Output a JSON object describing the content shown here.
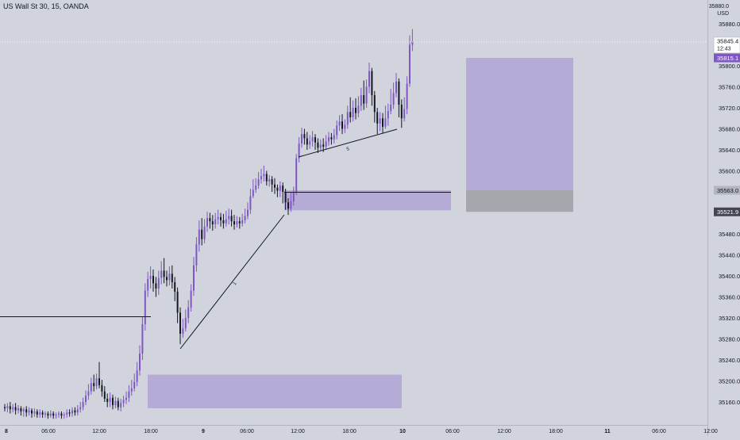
{
  "chart_data": {
    "type": "candlestick",
    "title": "US Wall St 30, 15, OANDA",
    "currency": "USD",
    "top_axis_label": "35880.0",
    "y_ticks": [
      "35880.0",
      "35800.0",
      "35760.0",
      "35720.0",
      "35680.0",
      "35640.0",
      "35600.0",
      "35480.0",
      "35440.0",
      "35400.0",
      "35360.0",
      "35320.0",
      "35280.0",
      "35240.0",
      "35200.0",
      "35160.0"
    ],
    "y_range": [
      35125,
      35920
    ],
    "x_ticks": [
      "8",
      "06:00",
      "12:00",
      "18:00",
      "9",
      "06:00",
      "12:00",
      "18:00",
      "10",
      "06:00",
      "12:00",
      "18:00",
      "11",
      "06:00",
      "12:00"
    ],
    "last_price": {
      "value": "35845.4",
      "countdown": "12:43"
    },
    "price_labels": [
      {
        "value": "35815.1",
        "price": 35815.1,
        "style": "purple"
      },
      {
        "value": "35563.0",
        "price": 35563.0,
        "style": "gray"
      },
      {
        "value": "35521.9",
        "price": 35521.9,
        "style": "dark"
      }
    ],
    "trendline_labels": [
      "1",
      "5"
    ],
    "candles": [
      [
        35150,
        35148,
        35156,
        35142
      ],
      [
        35148,
        35152,
        35158,
        35140
      ],
      [
        35152,
        35146,
        35160,
        35138
      ],
      [
        35146,
        35150,
        35156,
        35140
      ],
      [
        35150,
        35144,
        35158,
        35136
      ],
      [
        35144,
        35148,
        35154,
        35138
      ],
      [
        35148,
        35142,
        35152,
        35134
      ],
      [
        35142,
        35146,
        35150,
        35132
      ],
      [
        35146,
        35140,
        35152,
        35132
      ],
      [
        35140,
        35144,
        35150,
        35134
      ],
      [
        35144,
        35138,
        35148,
        35130
      ],
      [
        35138,
        35142,
        35148,
        35132
      ],
      [
        35142,
        35136,
        35146,
        35130
      ],
      [
        35136,
        35140,
        35146,
        35130
      ],
      [
        35140,
        35136,
        35144,
        35130
      ],
      [
        35136,
        35138,
        35142,
        35130
      ],
      [
        35138,
        35134,
        35142,
        35128
      ],
      [
        35134,
        35138,
        35144,
        35130
      ],
      [
        35138,
        35134,
        35142,
        35128
      ],
      [
        35134,
        35136,
        35140,
        35128
      ],
      [
        35136,
        35138,
        35142,
        35130
      ],
      [
        35138,
        35134,
        35142,
        35128
      ],
      [
        35134,
        35136,
        35140,
        35128
      ],
      [
        35136,
        35140,
        35146,
        35130
      ],
      [
        35140,
        35138,
        35146,
        35132
      ],
      [
        35138,
        35144,
        35150,
        35132
      ],
      [
        35144,
        35140,
        35150,
        35134
      ],
      [
        35140,
        35146,
        35154,
        35134
      ],
      [
        35146,
        35150,
        35160,
        35140
      ],
      [
        35150,
        35160,
        35168,
        35144
      ],
      [
        35160,
        35172,
        35182,
        35154
      ],
      [
        35172,
        35180,
        35194,
        35164
      ],
      [
        35180,
        35196,
        35206,
        35174
      ],
      [
        35196,
        35190,
        35212,
        35180
      ],
      [
        35190,
        35205,
        35214,
        35184
      ],
      [
        35205,
        35192,
        35236,
        35186
      ],
      [
        35192,
        35180,
        35202,
        35170
      ],
      [
        35180,
        35166,
        35190,
        35160
      ],
      [
        35166,
        35160,
        35176,
        35150
      ],
      [
        35160,
        35168,
        35178,
        35150
      ],
      [
        35168,
        35154,
        35174,
        35146
      ],
      [
        35154,
        35162,
        35170,
        35148
      ],
      [
        35162,
        35150,
        35168,
        35144
      ],
      [
        35150,
        35158,
        35166,
        35142
      ],
      [
        35158,
        35164,
        35172,
        35150
      ],
      [
        35164,
        35168,
        35180,
        35156
      ],
      [
        35168,
        35180,
        35192,
        35160
      ],
      [
        35180,
        35186,
        35202,
        35172
      ],
      [
        35186,
        35198,
        35214,
        35180
      ],
      [
        35198,
        35220,
        35236,
        35190
      ],
      [
        35220,
        35252,
        35268,
        35210
      ],
      [
        35252,
        35308,
        35322,
        35240
      ],
      [
        35308,
        35372,
        35386,
        35296
      ],
      [
        35372,
        35394,
        35408,
        35360
      ],
      [
        35394,
        35400,
        35418,
        35376
      ],
      [
        35400,
        35386,
        35412,
        35370
      ],
      [
        35386,
        35376,
        35398,
        35360
      ],
      [
        35376,
        35396,
        35410,
        35364
      ],
      [
        35396,
        35410,
        35428,
        35384
      ],
      [
        35410,
        35398,
        35434,
        35386
      ],
      [
        35398,
        35392,
        35410,
        35380
      ],
      [
        35392,
        35404,
        35418,
        35382
      ],
      [
        35404,
        35388,
        35420,
        35376
      ],
      [
        35388,
        35370,
        35398,
        35352
      ],
      [
        35370,
        35330,
        35378,
        35310
      ],
      [
        35330,
        35290,
        35340,
        35270
      ],
      [
        35290,
        35300,
        35318,
        35282
      ],
      [
        35300,
        35320,
        35336,
        35294
      ],
      [
        35320,
        35340,
        35354,
        35310
      ],
      [
        35340,
        35372,
        35384,
        35332
      ],
      [
        35372,
        35420,
        35436,
        35362
      ],
      [
        35420,
        35460,
        35474,
        35408
      ],
      [
        35460,
        35488,
        35506,
        35446
      ],
      [
        35488,
        35470,
        35510,
        35458
      ],
      [
        35470,
        35494,
        35508,
        35462
      ],
      [
        35494,
        35510,
        35522,
        35484
      ],
      [
        35510,
        35504,
        35520,
        35490
      ],
      [
        35504,
        35498,
        35516,
        35486
      ],
      [
        35498,
        35508,
        35520,
        35490
      ],
      [
        35508,
        35512,
        35526,
        35498
      ],
      [
        35512,
        35506,
        35520,
        35494
      ],
      [
        35506,
        35500,
        35518,
        35490
      ],
      [
        35500,
        35508,
        35524,
        35494
      ],
      [
        35508,
        35514,
        35528,
        35498
      ],
      [
        35514,
        35504,
        35526,
        35494
      ],
      [
        35504,
        35498,
        35516,
        35488
      ],
      [
        35498,
        35504,
        35514,
        35492
      ],
      [
        35504,
        35500,
        35512,
        35490
      ],
      [
        35500,
        35506,
        35518,
        35494
      ],
      [
        35506,
        35514,
        35528,
        35500
      ],
      [
        35514,
        35526,
        35540,
        35508
      ],
      [
        35526,
        35552,
        35566,
        35518
      ],
      [
        35552,
        35564,
        35584,
        35548
      ],
      [
        35564,
        35572,
        35586,
        35558
      ],
      [
        35572,
        35584,
        35598,
        35566
      ],
      [
        35584,
        35590,
        35604,
        35576
      ],
      [
        35590,
        35594,
        35610,
        35580
      ],
      [
        35594,
        35580,
        35600,
        35572
      ],
      [
        35580,
        35584,
        35592,
        35570
      ],
      [
        35584,
        35574,
        35590,
        35560
      ],
      [
        35574,
        35568,
        35586,
        35556
      ],
      [
        35568,
        35562,
        35574,
        35550
      ],
      [
        35562,
        35572,
        35580,
        35550
      ],
      [
        35572,
        35560,
        35578,
        35538
      ],
      [
        35560,
        35540,
        35566,
        35526
      ],
      [
        35540,
        35528,
        35548,
        35516
      ],
      [
        35528,
        35542,
        35560,
        35522
      ],
      [
        35542,
        35560,
        35570,
        35534
      ],
      [
        35560,
        35624,
        35632,
        35554
      ],
      [
        35624,
        35652,
        35664,
        35616
      ],
      [
        35652,
        35670,
        35682,
        35644
      ],
      [
        35670,
        35662,
        35680,
        35650
      ],
      [
        35662,
        35650,
        35674,
        35640
      ],
      [
        35650,
        35656,
        35668,
        35642
      ],
      [
        35656,
        35664,
        35676,
        35646
      ],
      [
        35664,
        35654,
        35670,
        35640
      ],
      [
        35654,
        35644,
        35662,
        35634
      ],
      [
        35644,
        35650,
        35660,
        35638
      ],
      [
        35650,
        35646,
        35662,
        35636
      ],
      [
        35646,
        35656,
        35668,
        35640
      ],
      [
        35656,
        35664,
        35674,
        35648
      ],
      [
        35664,
        35660,
        35672,
        35650
      ],
      [
        35660,
        35668,
        35680,
        35652
      ],
      [
        35668,
        35686,
        35696,
        35660
      ],
      [
        35686,
        35694,
        35706,
        35676
      ],
      [
        35694,
        35680,
        35708,
        35670
      ],
      [
        35680,
        35688,
        35698,
        35672
      ],
      [
        35688,
        35712,
        35724,
        35680
      ],
      [
        35712,
        35702,
        35740,
        35692
      ],
      [
        35702,
        35720,
        35734,
        35694
      ],
      [
        35720,
        35710,
        35738,
        35698
      ],
      [
        35710,
        35724,
        35742,
        35702
      ],
      [
        35724,
        35744,
        35758,
        35714
      ],
      [
        35744,
        35728,
        35772,
        35716
      ],
      [
        35728,
        35760,
        35774,
        35720
      ],
      [
        35760,
        35790,
        35806,
        35748
      ],
      [
        35790,
        35744,
        35796,
        35724
      ],
      [
        35744,
        35712,
        35752,
        35692
      ],
      [
        35712,
        35690,
        35720,
        35670
      ],
      [
        35690,
        35700,
        35712,
        35676
      ],
      [
        35700,
        35684,
        35710,
        35672
      ],
      [
        35684,
        35700,
        35724,
        35680
      ],
      [
        35700,
        35714,
        35728,
        35686
      ],
      [
        35714,
        35726,
        35756,
        35708
      ],
      [
        35726,
        35748,
        35768,
        35718
      ],
      [
        35748,
        35770,
        35786,
        35740
      ],
      [
        35770,
        35726,
        35776,
        35702
      ],
      [
        35726,
        35700,
        35736,
        35682
      ],
      [
        35700,
        35718,
        35740,
        35694
      ],
      [
        35718,
        35766,
        35780,
        35708
      ],
      [
        35766,
        35840,
        35858,
        35760
      ],
      [
        35840,
        35846,
        35870,
        35828
      ]
    ]
  }
}
